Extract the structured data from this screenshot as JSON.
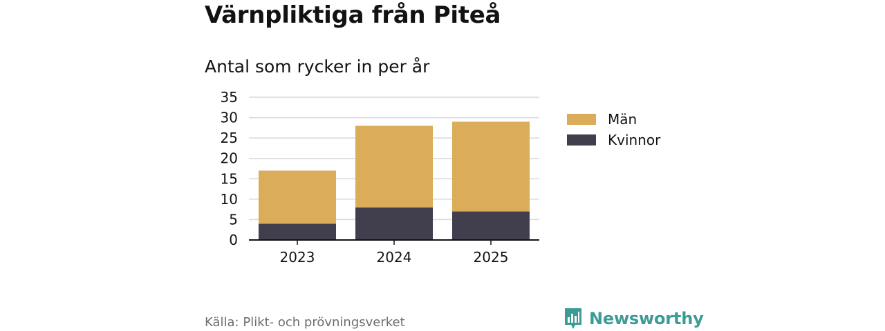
{
  "header": {
    "title": "Värnpliktiga från Piteå",
    "subtitle": "Antal som rycker in per år"
  },
  "chart_data": {
    "type": "bar",
    "stacked": true,
    "categories": [
      "2023",
      "2024",
      "2025"
    ],
    "series": [
      {
        "name": "Kvinnor",
        "values": [
          4,
          8,
          7
        ],
        "color": "#413e4d"
      },
      {
        "name": "Män",
        "values": [
          13,
          20,
          22
        ],
        "color": "#dbac59"
      }
    ],
    "title": "Värnpliktiga från Piteå",
    "subtitle": "Antal som rycker in per år",
    "xlabel": "",
    "ylabel": "",
    "ylim": [
      0,
      35
    ],
    "yticks": [
      "0",
      "5",
      "10",
      "15",
      "20",
      "25",
      "30",
      "35"
    ],
    "grid": true,
    "legend_position": "right"
  },
  "legend": {
    "items": [
      {
        "label": "Män",
        "color": "#dbac59"
      },
      {
        "label": "Kvinnor",
        "color": "#413e4d"
      }
    ]
  },
  "footer": {
    "source": "Källa: Plikt- och prövningsverket",
    "brand": "Newsworthy",
    "brand_color": "#3d9b95",
    "brand_icon": "bar-chart-speech-icon"
  }
}
